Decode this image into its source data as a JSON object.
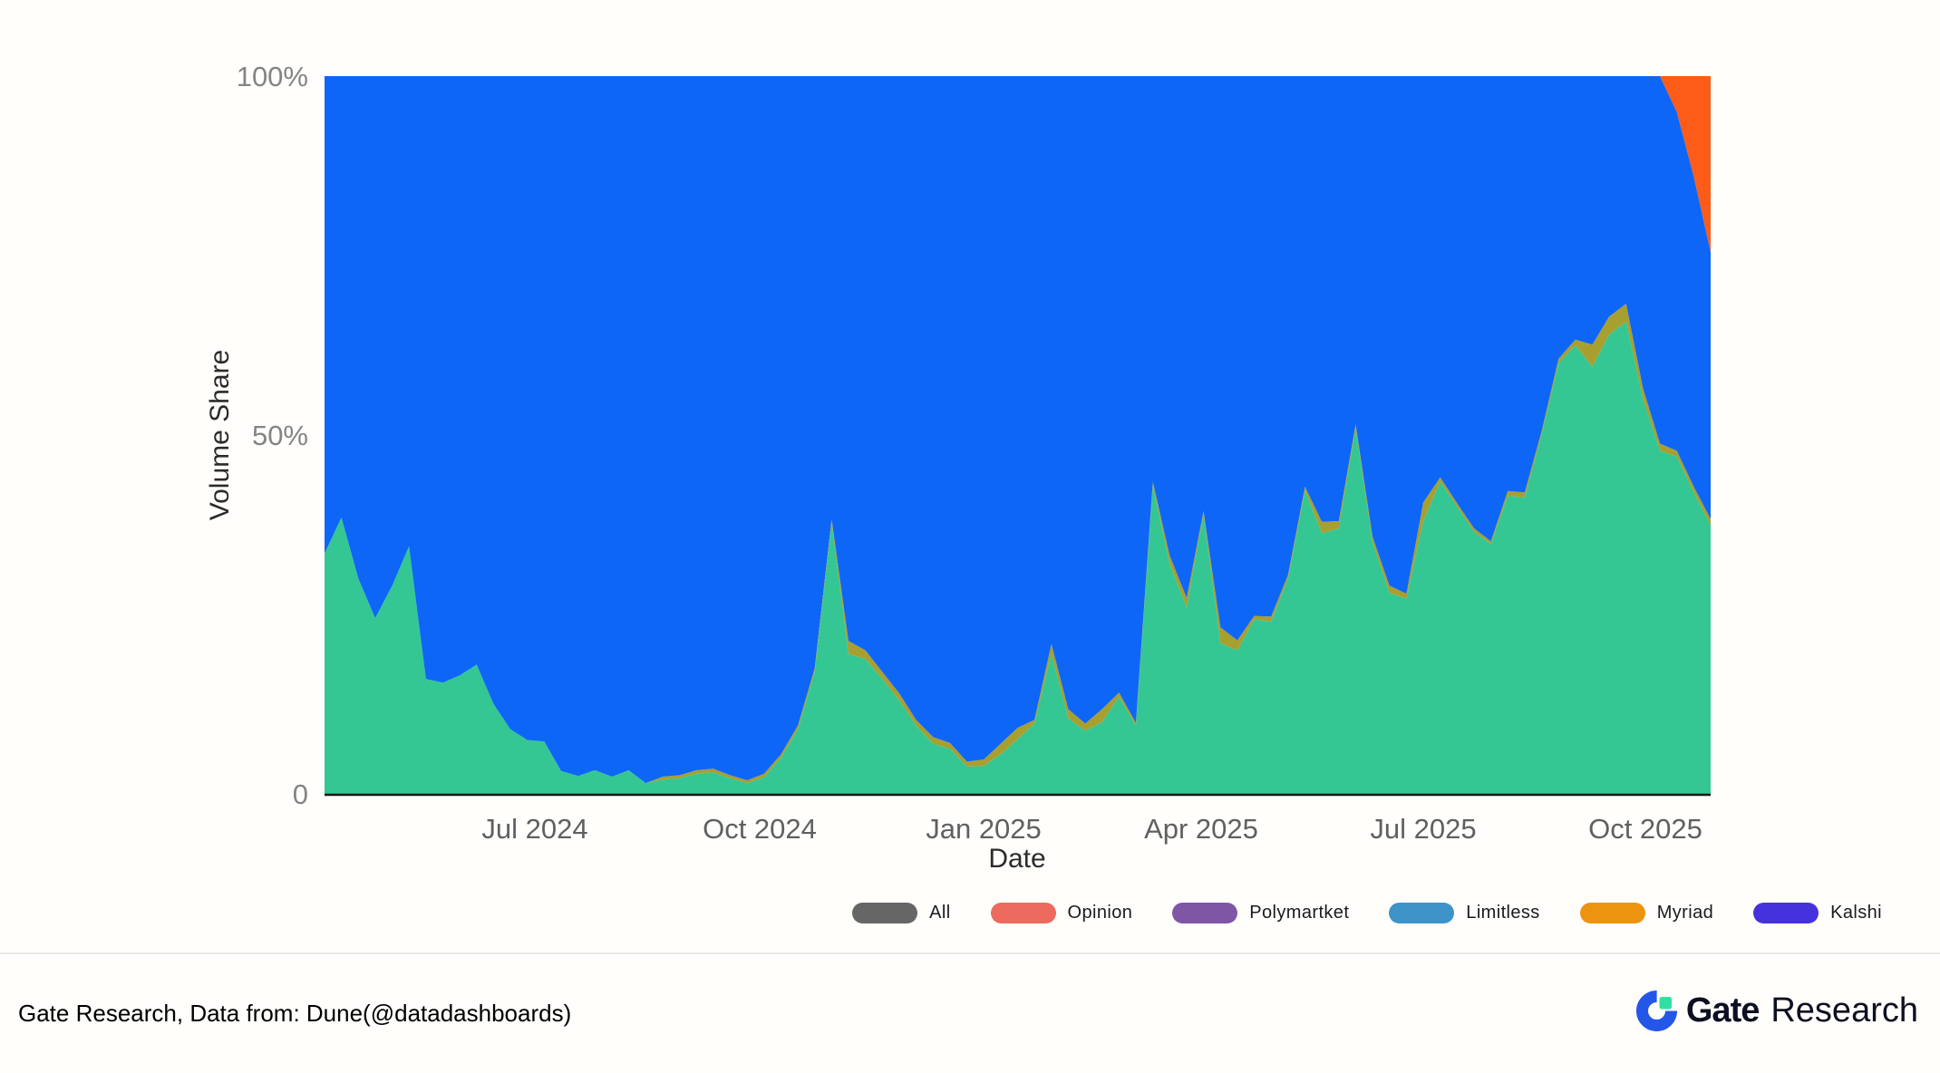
{
  "page": {
    "background": "#fffefb"
  },
  "chart": {
    "y_axis": {
      "title": "Volume Share",
      "ticks": [
        {
          "label": "0",
          "value": 0
        },
        {
          "label": "50%",
          "value": 50
        },
        {
          "label": "100%",
          "value": 100
        }
      ]
    },
    "x_axis": {
      "title": "Date",
      "ticks": [
        {
          "label": "Jul 2024",
          "pos": 0.152
        },
        {
          "label": "Oct 2024",
          "pos": 0.314
        },
        {
          "label": "Jan 2025",
          "pos": 0.4755
        },
        {
          "label": "Apr 2025",
          "pos": 0.6325
        },
        {
          "label": "Jul 2025",
          "pos": 0.7927
        },
        {
          "label": "Oct 2025",
          "pos": 0.9529
        }
      ]
    }
  },
  "chart_data": {
    "type": "area",
    "stacked": true,
    "title": "",
    "xlabel": "Date",
    "ylabel": "Volume Share",
    "ylim": [
      0,
      100
    ],
    "grid": false,
    "legend_position": "bottom-right",
    "x": [
      "2024-04-07",
      "2024-04-14",
      "2024-04-21",
      "2024-04-28",
      "2024-05-05",
      "2024-05-12",
      "2024-05-19",
      "2024-05-26",
      "2024-06-02",
      "2024-06-09",
      "2024-06-16",
      "2024-06-23",
      "2024-06-30",
      "2024-07-07",
      "2024-07-14",
      "2024-07-21",
      "2024-07-28",
      "2024-08-04",
      "2024-08-11",
      "2024-08-18",
      "2024-08-25",
      "2024-09-01",
      "2024-09-08",
      "2024-09-15",
      "2024-09-22",
      "2024-09-29",
      "2024-10-06",
      "2024-10-13",
      "2024-10-20",
      "2024-10-27",
      "2024-11-03",
      "2024-11-10",
      "2024-11-17",
      "2024-11-24",
      "2024-12-01",
      "2024-12-08",
      "2024-12-15",
      "2024-12-22",
      "2024-12-29",
      "2025-01-05",
      "2025-01-12",
      "2025-01-19",
      "2025-01-26",
      "2025-02-02",
      "2025-02-09",
      "2025-02-16",
      "2025-02-23",
      "2025-03-02",
      "2025-03-09",
      "2025-03-16",
      "2025-03-23",
      "2025-03-30",
      "2025-04-06",
      "2025-04-13",
      "2025-04-20",
      "2025-04-27",
      "2025-05-04",
      "2025-05-11",
      "2025-05-18",
      "2025-05-25",
      "2025-06-01",
      "2025-06-08",
      "2025-06-15",
      "2025-06-22",
      "2025-06-29",
      "2025-07-06",
      "2025-07-13",
      "2025-07-20",
      "2025-07-27",
      "2025-08-03",
      "2025-08-10",
      "2025-08-17",
      "2025-08-24",
      "2025-08-31",
      "2025-09-07",
      "2025-09-14",
      "2025-09-21",
      "2025-09-28",
      "2025-10-05",
      "2025-10-12",
      "2025-10-19",
      "2025-10-26",
      "2025-11-02"
    ],
    "series": [
      {
        "name": "Kalshi",
        "color": "#34c794",
        "values": [
          33.5,
          38.5,
          30,
          24.5,
          29,
          34.5,
          16,
          15.5,
          16.5,
          18,
          12.5,
          9,
          7.5,
          7.3,
          3.2,
          2.5,
          3.3,
          2.4,
          3.3,
          1.5,
          2,
          2.2,
          2.8,
          3,
          2.2,
          1.5,
          2.3,
          5,
          9,
          17,
          37.8,
          19.5,
          18.8,
          16,
          13,
          9.5,
          7,
          6.3,
          3.8,
          3.9,
          5.5,
          7.6,
          9.8,
          19.5,
          10.5,
          8.8,
          10,
          13.5,
          9.5,
          43,
          32,
          26,
          39,
          21,
          20,
          24.3,
          24,
          30,
          42.3,
          36.3,
          37,
          51,
          35,
          28,
          27.2,
          38,
          43.5,
          40,
          36.5,
          34.8,
          41.5,
          41.3,
          50,
          60,
          62.5,
          59.5,
          64,
          65.8,
          55,
          47.8,
          47,
          42,
          37.4
        ]
      },
      {
        "name": "Myriad",
        "color": "#a89f31",
        "values": [
          0,
          0,
          0,
          0,
          0,
          0,
          0,
          0,
          0,
          0,
          0,
          0,
          0,
          0,
          0,
          0,
          0,
          0,
          0,
          0,
          0.4,
          0.4,
          0.5,
          0.5,
          0.4,
          0.4,
          0.5,
          0.5,
          0.5,
          0.5,
          0.5,
          1.8,
          1.2,
          1.0,
          1.0,
          0.8,
          0.9,
          0.8,
          0.7,
          0.9,
          1.5,
          1.6,
          0.5,
          1.4,
          1.3,
          1.0,
          1.8,
          0.6,
          0.4,
          0.5,
          1.2,
          1.3,
          0.4,
          2.2,
          1.4,
          0.5,
          0.7,
          0.5,
          0.5,
          1.6,
          1.0,
          0.5,
          0.8,
          1.0,
          0.7,
          2.6,
          0.6,
          0.5,
          0.5,
          0.4,
          0.7,
          0.7,
          0.5,
          0.6,
          0.8,
          3.1,
          2.5,
          2.5,
          1.5,
          1.0,
          0.8,
          0.8,
          0.9
        ]
      },
      {
        "name": "Polymarket",
        "color": "#0e66f7",
        "values": [
          66.5,
          61.5,
          70,
          75.5,
          71,
          65.5,
          84,
          84.5,
          83.5,
          82,
          87.5,
          91,
          92.5,
          92.7,
          96.8,
          97.5,
          96.7,
          97.6,
          96.7,
          98.5,
          97.6,
          97.4,
          96.7,
          96.5,
          97.4,
          98.1,
          97.2,
          94.5,
          90.5,
          82.5,
          61.7,
          78.7,
          80,
          83,
          86,
          89.7,
          92.1,
          92.9,
          95.5,
          95.2,
          93,
          90.8,
          89.7,
          79.1,
          88.2,
          90.2,
          88.2,
          85.9,
          90.1,
          56.5,
          66.8,
          72.7,
          60.6,
          76.8,
          78.6,
          75.2,
          75.3,
          69.5,
          57.2,
          62.1,
          62,
          48.5,
          64.2,
          71,
          72.1,
          59.4,
          55.9,
          59.5,
          63,
          64.8,
          57.8,
          58,
          49.5,
          39.4,
          36.7,
          37.4,
          33.5,
          31.7,
          43.5,
          51.2,
          47.2,
          43.2,
          37.2
        ]
      },
      {
        "name": "Opinion",
        "color": "#fc5c17",
        "values": [
          0,
          0,
          0,
          0,
          0,
          0,
          0,
          0,
          0,
          0,
          0,
          0,
          0,
          0,
          0,
          0,
          0,
          0,
          0,
          0,
          0,
          0,
          0,
          0,
          0,
          0,
          0,
          0,
          0,
          0,
          0,
          0,
          0,
          0,
          0,
          0,
          0,
          0,
          0,
          0,
          0,
          0,
          0,
          0,
          0,
          0,
          0,
          0,
          0,
          0,
          0,
          0,
          0,
          0,
          0,
          0,
          0,
          0,
          0,
          0,
          0,
          0,
          0,
          0,
          0,
          0,
          0,
          0,
          0,
          0,
          0,
          0,
          0,
          0,
          0,
          0,
          0,
          0,
          0,
          0,
          5,
          14,
          24.5
        ]
      }
    ]
  },
  "legend": {
    "items": [
      {
        "label": "All",
        "color": "#666666"
      },
      {
        "label": "Opinion",
        "color": "#ed6a5e"
      },
      {
        "label": "Polymartket",
        "color": "#7f56a6"
      },
      {
        "label": "Limitless",
        "color": "#3e93c9"
      },
      {
        "label": "Myriad",
        "color": "#ec9410"
      },
      {
        "label": "Kalshi",
        "color": "#4632dd"
      }
    ]
  },
  "footer": {
    "source_text": "Gate Research, Data from: Dune(@datadashboards)",
    "brand": {
      "name_bold": "Gate",
      "name_regular": "Research"
    }
  }
}
